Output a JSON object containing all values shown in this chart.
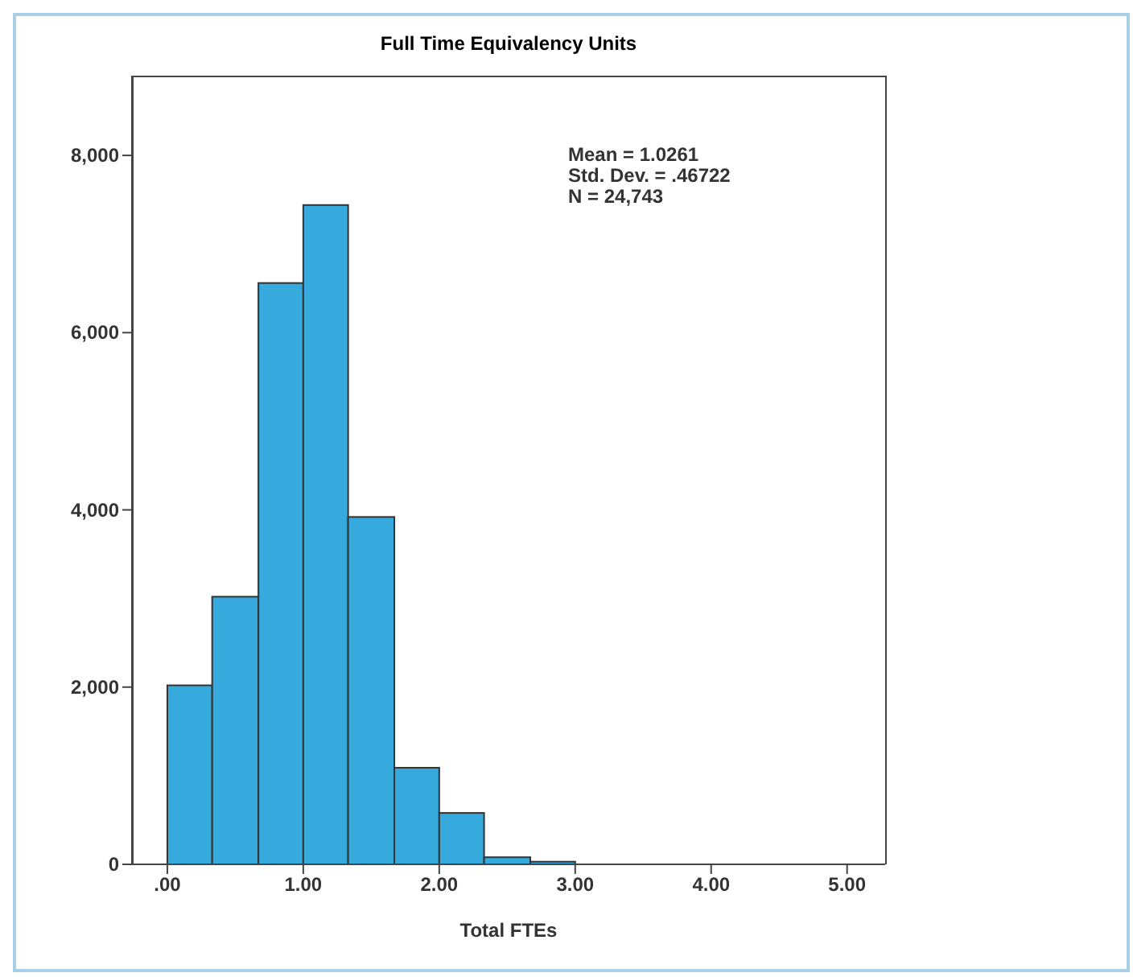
{
  "chart_data": {
    "type": "histogram",
    "title": "Full Time Equivalency Units",
    "xlabel": "Total FTEs",
    "bins": [
      0,
      0.33,
      0.67,
      1,
      1.33,
      1.67,
      2,
      2.33,
      2.67,
      3
    ],
    "values": [
      2020,
      3020,
      6560,
      7440,
      3920,
      1090,
      580,
      80,
      30
    ],
    "color": "#36a9dd",
    "xlim": [
      -0.26,
      5.28
    ],
    "xticks": [
      {
        "value": 0,
        "label": ".00"
      },
      {
        "value": 1,
        "label": "1.00"
      },
      {
        "value": 2,
        "label": "2.00"
      },
      {
        "value": 3,
        "label": "3.00"
      },
      {
        "value": 4,
        "label": "4.00"
      },
      {
        "value": 5,
        "label": "5.00"
      }
    ],
    "ylim": [
      0,
      8900
    ],
    "yticks": [
      0,
      {
        "value": 2000,
        "label": "2,000"
      },
      {
        "value": 4000,
        "label": "4,000"
      },
      {
        "value": 6000,
        "label": "6,000"
      },
      {
        "value": 8000,
        "label": "8,000"
      }
    ],
    "annotations": [
      "Mean = 1.0261",
      "Std. Dev. = .46722",
      "N = 24,743"
    ],
    "grid": false,
    "legend": false
  }
}
